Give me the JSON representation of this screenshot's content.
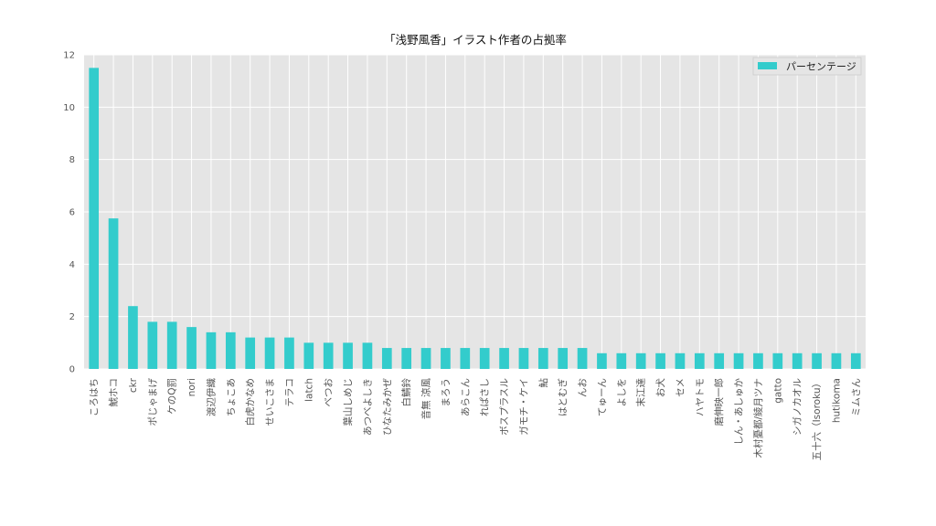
{
  "chart_data": {
    "type": "bar",
    "title": "「浅野風香」イラスト作者の占拠率",
    "xlabel": "",
    "ylabel": "",
    "ylim": [
      0,
      12
    ],
    "yticks": [
      0,
      2,
      4,
      6,
      8,
      10,
      12
    ],
    "grid": true,
    "legend_position": "top-right",
    "bar_color": "#33CCCC",
    "background_color": "#E5E5E5",
    "grid_color": "#FFFFFF",
    "categories": [
      "ころはち",
      "鯱ホコ",
      "ckr",
      "ポじゃまげ",
      "ケのQ罰",
      "nori",
      "渡辺伊織",
      "ちょこあ",
      "白虎かなめ",
      "せいこさま",
      "テラコ",
      "latch",
      "べつお",
      "葉山しめじ",
      "あつべよしき",
      "ひなたみかぜ",
      "白鯖鈴",
      "音無 涼風",
      "まろう",
      "あらこん",
      "れぱさし",
      "ボスプラスル",
      "ガモチ・ケイ",
      "鮎",
      "はとむぎ",
      "んお",
      "てゅーん",
      "よしを",
      "末江達",
      "お犬",
      "セメ",
      "ハヤトモ",
      "磨伸映一郎",
      "しん・あしゅか",
      "木村憂都/綾月ツナ",
      "gatto",
      "シガノカオル",
      "五十六（Isoroku）",
      "hutikoma",
      "ミムさん"
    ],
    "series": [
      {
        "name": "パーセンテージ",
        "values": [
          11.5,
          5.75,
          2.4,
          1.8,
          1.8,
          1.6,
          1.4,
          1.4,
          1.2,
          1.2,
          1.2,
          1.0,
          1.0,
          1.0,
          1.0,
          0.8,
          0.8,
          0.8,
          0.8,
          0.8,
          0.8,
          0.8,
          0.8,
          0.8,
          0.8,
          0.8,
          0.6,
          0.6,
          0.6,
          0.6,
          0.6,
          0.6,
          0.6,
          0.6,
          0.6,
          0.6,
          0.6,
          0.6,
          0.6,
          0.6
        ]
      }
    ]
  }
}
